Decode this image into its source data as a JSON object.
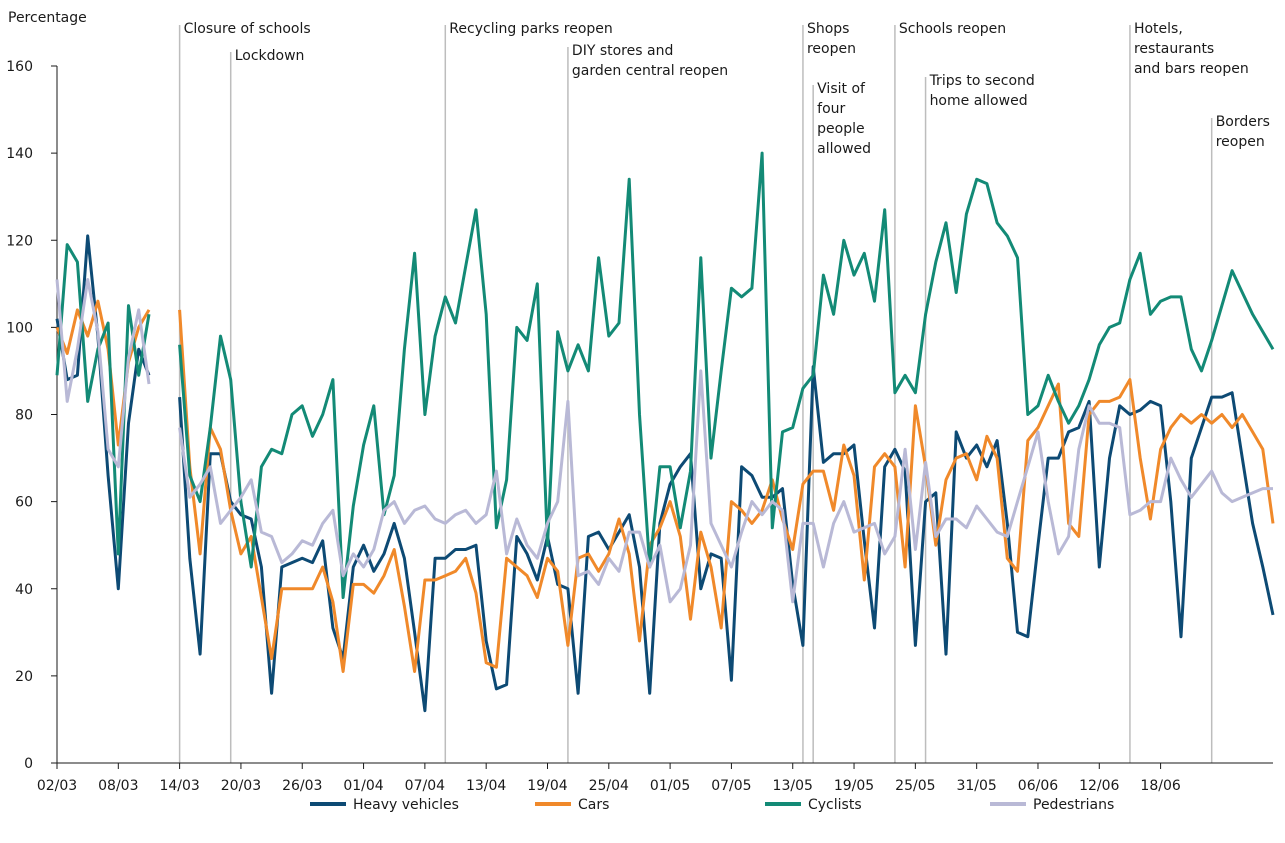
{
  "chart_data": {
    "type": "line",
    "y_label": "Percentage",
    "ylim": [
      0,
      160
    ],
    "yticks": [
      0,
      20,
      40,
      60,
      80,
      100,
      120,
      140,
      160
    ],
    "categories": [
      "02/03",
      null,
      null,
      null,
      null,
      null,
      "08/03",
      null,
      null,
      null,
      null,
      null,
      "14/03",
      null,
      null,
      null,
      null,
      null,
      "20/03",
      null,
      null,
      null,
      null,
      null,
      "26/03",
      null,
      null,
      null,
      null,
      null,
      "01/04",
      null,
      null,
      null,
      null,
      null,
      "07/04",
      null,
      null,
      null,
      null,
      null,
      "13/04",
      null,
      null,
      null,
      null,
      null,
      "19/04",
      null,
      null,
      null,
      null,
      null,
      "25/04",
      null,
      null,
      null,
      null,
      null,
      "01/05",
      null,
      null,
      null,
      null,
      null,
      "07/05",
      null,
      null,
      null,
      null,
      null,
      "13/05",
      null,
      null,
      null,
      null,
      null,
      "19/05",
      null,
      null,
      null,
      null,
      null,
      "25/05",
      null,
      null,
      null,
      null,
      null,
      "31/05",
      null,
      null,
      null,
      null,
      null,
      "06/06",
      null,
      null,
      null,
      null,
      null,
      "12/06",
      null,
      null,
      null,
      null,
      null,
      "18/06",
      null,
      null,
      null,
      null,
      null,
      null,
      null,
      null,
      null,
      null,
      null
    ],
    "series": [
      {
        "name": "Heavy vehicles",
        "color": "#0d4a74",
        "values": [
          102,
          88,
          89,
          121,
          98,
          66,
          40,
          78,
          95,
          89,
          null,
          null,
          84,
          47,
          25,
          71,
          71,
          60,
          57,
          56,
          45,
          16,
          45,
          46,
          47,
          46,
          51,
          31,
          24,
          45,
          50,
          44,
          48,
          55,
          47,
          30,
          12,
          47,
          47,
          49,
          49,
          50,
          28,
          17,
          18,
          52,
          48,
          42,
          52,
          41,
          40,
          16,
          52,
          53,
          49,
          53,
          57,
          45,
          16,
          55,
          64,
          68,
          71,
          40,
          48,
          47,
          19,
          68,
          66,
          61,
          61,
          63,
          41,
          27,
          91,
          69,
          71,
          71,
          73,
          51,
          31,
          68,
          72,
          67,
          27,
          60,
          62,
          25,
          76,
          70,
          73,
          68,
          74,
          55,
          30,
          29,
          50,
          70,
          70,
          76,
          77,
          83,
          45,
          70,
          82,
          80,
          81,
          83,
          82,
          60,
          29,
          70,
          77,
          84,
          84,
          85,
          70,
          55,
          45,
          34
        ]
      },
      {
        "name": "Cars",
        "color": "#f0892a",
        "values": [
          100,
          94,
          104,
          98,
          106,
          95,
          73,
          92,
          100,
          104,
          null,
          null,
          104,
          68,
          48,
          77,
          72,
          58,
          48,
          52,
          38,
          24,
          40,
          40,
          40,
          40,
          45,
          37,
          21,
          41,
          41,
          39,
          43,
          49,
          36,
          21,
          42,
          42,
          43,
          44,
          47,
          39,
          23,
          22,
          47,
          45,
          43,
          38,
          47,
          44,
          27,
          47,
          48,
          44,
          48,
          56,
          48,
          28,
          50,
          54,
          60,
          52,
          33,
          53,
          45,
          31,
          60,
          58,
          55,
          58,
          65,
          56,
          49,
          64,
          67,
          67,
          58,
          73,
          66,
          42,
          68,
          71,
          68,
          45,
          82,
          68,
          50,
          65,
          70,
          71,
          65,
          75,
          70,
          47,
          44,
          74,
          77,
          82,
          87,
          55,
          52,
          80,
          83,
          83,
          84,
          88,
          70,
          56,
          72,
          77,
          80,
          78,
          80,
          78,
          80,
          77,
          80,
          76,
          72,
          55
        ]
      },
      {
        "name": "Cyclists",
        "color": "#138a76",
        "values": [
          89,
          119,
          115,
          83,
          95,
          101,
          48,
          105,
          89,
          103,
          null,
          null,
          96,
          66,
          60,
          77,
          98,
          88,
          60,
          45,
          68,
          72,
          71,
          80,
          82,
          75,
          80,
          88,
          38,
          59,
          73,
          82,
          57,
          66,
          95,
          117,
          80,
          98,
          107,
          101,
          114,
          127,
          103,
          54,
          65,
          100,
          97,
          110,
          50,
          99,
          90,
          96,
          90,
          116,
          98,
          101,
          134,
          80,
          45,
          68,
          68,
          54,
          67,
          116,
          70,
          90,
          109,
          107,
          109,
          140,
          54,
          76,
          77,
          86,
          89,
          112,
          103,
          120,
          112,
          117,
          106,
          127,
          85,
          89,
          85,
          103,
          115,
          124,
          108,
          126,
          134,
          133,
          124,
          121,
          116,
          80,
          82,
          89,
          83,
          78,
          82,
          88,
          96,
          100,
          101,
          111,
          117,
          103,
          106,
          107,
          107,
          95,
          90,
          97,
          105,
          113,
          108,
          103,
          99,
          95
        ]
      },
      {
        "name": "Pedestrians",
        "color": "#b9b9d6",
        "values": [
          111,
          83,
          95,
          111,
          99,
          72,
          68,
          93,
          104,
          87,
          null,
          null,
          77,
          61,
          64,
          68,
          55,
          58,
          61,
          65,
          53,
          52,
          46,
          48,
          51,
          50,
          55,
          58,
          43,
          48,
          45,
          49,
          58,
          60,
          55,
          58,
          59,
          56,
          55,
          57,
          58,
          55,
          57,
          67,
          48,
          56,
          50,
          47,
          55,
          60,
          83,
          43,
          44,
          41,
          47,
          44,
          53,
          53,
          45,
          50,
          37,
          40,
          50,
          90,
          55,
          50,
          45,
          53,
          60,
          57,
          60,
          58,
          37,
          55,
          55,
          45,
          55,
          60,
          53,
          54,
          55,
          48,
          52,
          72,
          49,
          69,
          52,
          56,
          56,
          54,
          59,
          56,
          53,
          52,
          60,
          68,
          76,
          60,
          48,
          52,
          72,
          82,
          78,
          78,
          77,
          57,
          58,
          60,
          60,
          70,
          65,
          61,
          64,
          67,
          62,
          60,
          61,
          62,
          63,
          63
        ]
      }
    ],
    "annotations": [
      {
        "x": 12,
        "lines": [
          "Closure of schools"
        ]
      },
      {
        "x": 17,
        "lines": [
          "Lockdown"
        ]
      },
      {
        "x": 38,
        "lines": [
          "Recycling parks reopen"
        ]
      },
      {
        "x": 50,
        "lines": [
          "DIY stores and",
          "garden central reopen"
        ]
      },
      {
        "x": 73,
        "lines": [
          "Shops",
          "reopen"
        ]
      },
      {
        "x": 74,
        "lines": [
          "Visit of",
          "four",
          "people",
          "allowed"
        ]
      },
      {
        "x": 82,
        "lines": [
          "Schools reopen"
        ]
      },
      {
        "x": 85,
        "lines": [
          "Trips to second",
          "home allowed"
        ]
      },
      {
        "x": 105,
        "lines": [
          "Hotels,",
          "restaurants",
          "and bars reopen"
        ]
      },
      {
        "x": 113,
        "lines": [
          "Borders",
          "reopen"
        ]
      }
    ]
  }
}
